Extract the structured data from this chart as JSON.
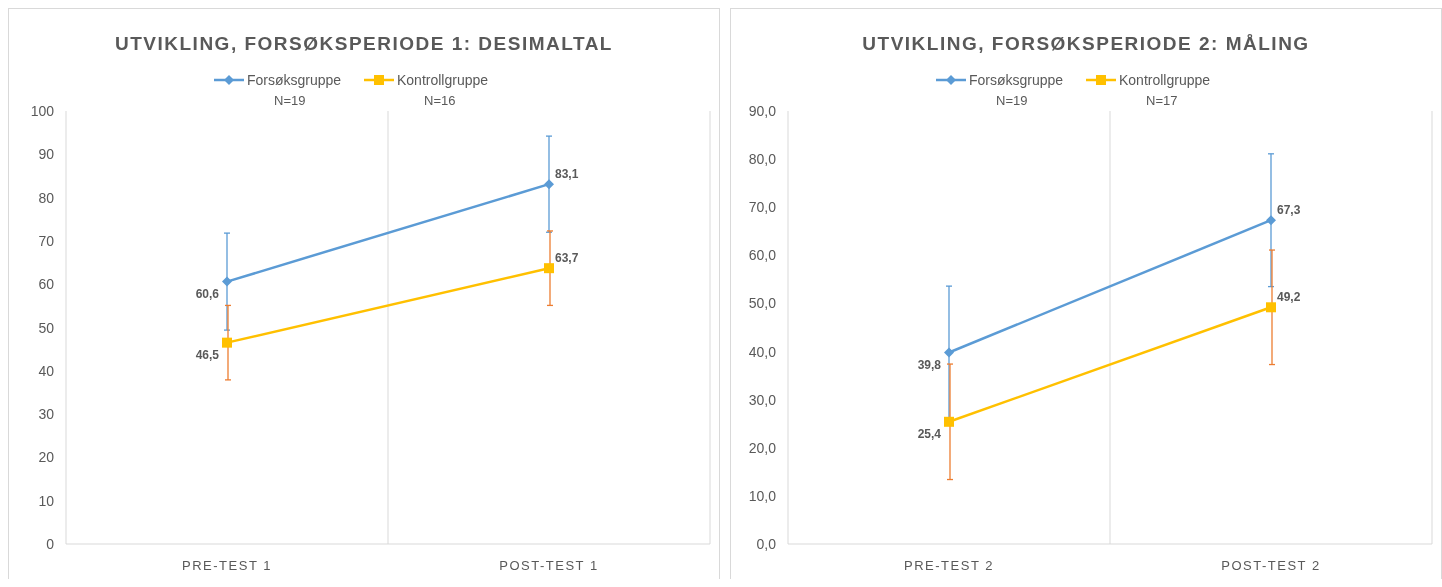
{
  "chart_data": [
    {
      "type": "line",
      "title": "UTVIKLING,  FORSØKSPERIODE  1: DESIMALTAL",
      "categories": [
        "PRE-TEST 1",
        "POST-TEST 1"
      ],
      "series": [
        {
          "name": "Forsøksgruppe",
          "color": "#5b9bd5",
          "marker": "diamond",
          "values": [
            60.6,
            83.1
          ],
          "value_labels": [
            "60,6",
            "83,1"
          ],
          "errors": [
            11.2,
            11.1
          ]
        },
        {
          "name": "Kontrollgruppe",
          "color": "#ffc000",
          "marker": "square",
          "values": [
            46.5,
            63.7
          ],
          "value_labels": [
            "46,5",
            "63,7"
          ],
          "errors": [
            8.6,
            8.6
          ]
        }
      ],
      "annotations": [
        "N=19",
        "N=16"
      ],
      "ylim": [
        0,
        100
      ],
      "yticks": [
        0,
        10,
        20,
        30,
        40,
        50,
        60,
        70,
        80,
        90,
        100
      ],
      "grid": "x",
      "legend": "top"
    },
    {
      "type": "line",
      "title": "UTVIKLING,  FORSØKSPERIODE  2: MÅLING",
      "categories": [
        "PRE-TEST 2",
        "POST-TEST 2"
      ],
      "series": [
        {
          "name": "Forsøksgruppe",
          "color": "#5b9bd5",
          "marker": "diamond",
          "values": [
            39.8,
            67.3
          ],
          "value_labels": [
            "39,8",
            "67,3"
          ],
          "errors": [
            13.8,
            13.8
          ]
        },
        {
          "name": "Kontrollgruppe",
          "color": "#ffc000",
          "marker": "square",
          "values": [
            25.4,
            49.2
          ],
          "value_labels": [
            "25,4",
            "49,2"
          ],
          "errors": [
            12,
            11.9
          ]
        }
      ],
      "annotations": [
        "N=19",
        "N=17"
      ],
      "ylim": [
        0,
        90
      ],
      "yticks": [
        {
          "value": 0,
          "label": "0,0"
        },
        {
          "value": 10,
          "label": "10,0"
        },
        {
          "value": 20,
          "label": "20,0"
        },
        {
          "value": 30,
          "label": "30,0"
        },
        {
          "value": 40,
          "label": "40,0"
        },
        {
          "value": 50,
          "label": "50,0"
        },
        {
          "value": 60,
          "label": "60,0"
        },
        {
          "value": 70,
          "label": "70,0"
        },
        {
          "value": 80,
          "label": "80,0"
        },
        {
          "value": 90,
          "label": "90,0"
        }
      ],
      "grid": "x",
      "legend": "top"
    }
  ]
}
